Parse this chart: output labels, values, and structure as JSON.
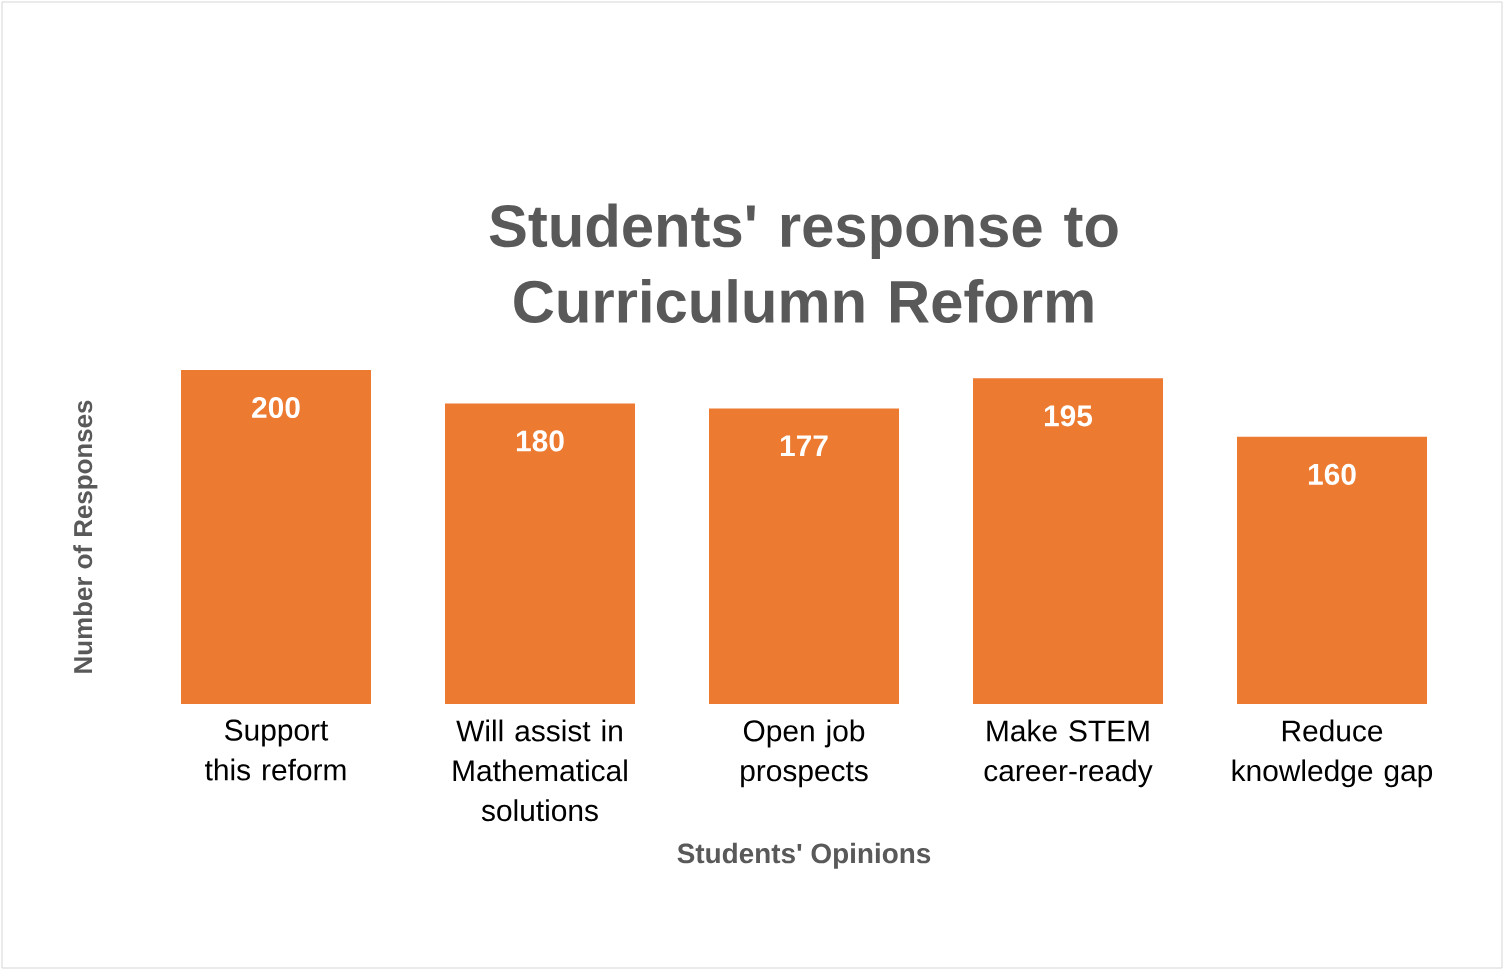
{
  "chart_data": {
    "type": "bar",
    "title": "Students' response to Curriculumn Reform",
    "xlabel": "Students' Opinions",
    "ylabel": "Number of Responses",
    "categories": [
      "Support this reform",
      "Will assist in Mathematical solutions",
      "Open job prospects",
      "Make STEM career-ready",
      "Reduce knowledge gap"
    ],
    "values": [
      200,
      180,
      177,
      195,
      160
    ],
    "color": "#ec7a30",
    "ylim": [
      0,
      200
    ],
    "data_labels": true,
    "tick_labels": "x"
  }
}
